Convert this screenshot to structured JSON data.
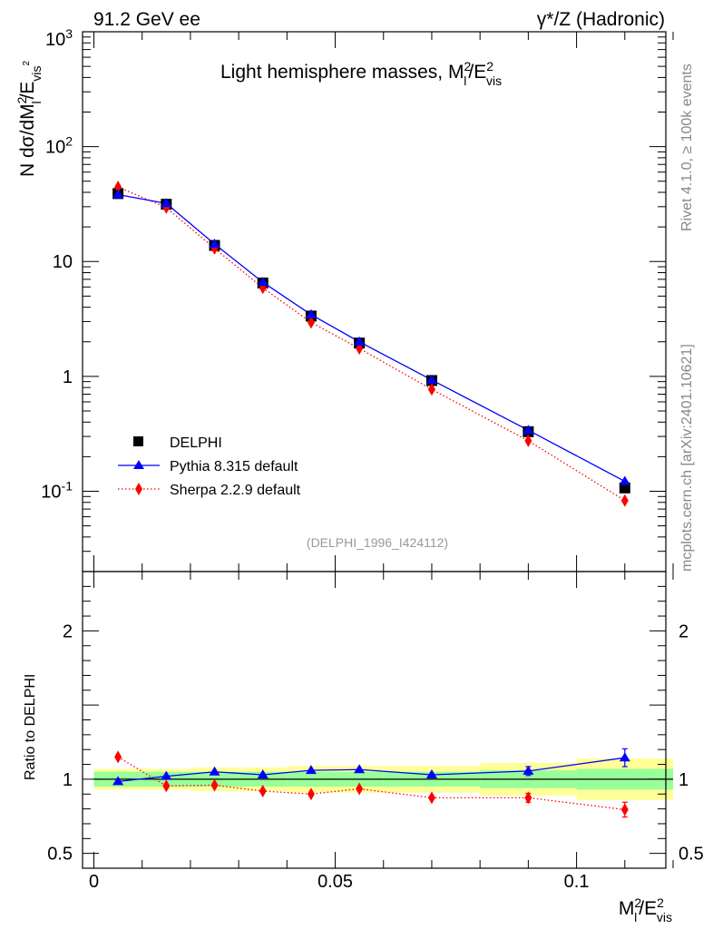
{
  "header": {
    "left": "91.2 GeV ee",
    "right": "γ*/Z (Hadronic)"
  },
  "side_labels": {
    "rivet": "Rivet 4.1.0, ≥ 100k events",
    "mcplots": "mcplots.cern.ch [arXiv:2401.10621]"
  },
  "chart_data": {
    "type": "line",
    "title": "Light hemisphere masses, M_l^2/E_vis^2",
    "analysis_id": "(DELPHI_1996_I424112)",
    "xlabel": "M_l^2/E_vis^2",
    "ylabel": "N  dσ/dM_l^2/E_vis^2",
    "ratio_ylabel": "Ratio to DELPHI",
    "xlim": [
      0,
      0.12
    ],
    "ylim": [
      0.02,
      1000
    ],
    "yscale": "log",
    "ratio_ylim": [
      0.4,
      2.4
    ],
    "x_ticks": [
      "0",
      "0.05",
      "0.1"
    ],
    "x_tick_values": [
      0,
      0.05,
      0.1
    ],
    "y_ticks": [
      "10^-1",
      "1",
      "10",
      "10^2",
      "10^3"
    ],
    "y_tick_values": [
      0.1,
      1,
      10,
      100,
      1000
    ],
    "ratio_ticks": [
      "0.5",
      "1",
      "2"
    ],
    "ratio_tick_values": [
      0.5,
      1,
      2
    ],
    "bins": [
      [
        0,
        0.01
      ],
      [
        0.01,
        0.02
      ],
      [
        0.02,
        0.03
      ],
      [
        0.03,
        0.04
      ],
      [
        0.04,
        0.05
      ],
      [
        0.05,
        0.06
      ],
      [
        0.06,
        0.08
      ],
      [
        0.08,
        0.1
      ],
      [
        0.1,
        0.12
      ]
    ],
    "x": [
      0.005,
      0.015,
      0.025,
      0.035,
      0.045,
      0.055,
      0.07,
      0.09,
      0.11
    ],
    "legend_position": "bottom-left",
    "series": [
      {
        "name": "DELPHI",
        "color": "#000000",
        "marker": "square",
        "values": [
          39.0,
          31.5,
          13.8,
          6.5,
          3.35,
          1.95,
          0.92,
          0.33,
          0.107
        ],
        "band_inner": [
          0.05,
          0.05,
          0.05,
          0.05,
          0.05,
          0.05,
          0.05,
          0.06,
          0.07
        ],
        "band_outer": [
          0.07,
          0.07,
          0.08,
          0.08,
          0.09,
          0.09,
          0.09,
          0.11,
          0.14
        ]
      },
      {
        "name": "Pythia 8.315 default",
        "color": "#0000ff",
        "marker": "triangle",
        "line": "solid",
        "values": [
          38.2,
          32.0,
          14.2,
          6.6,
          3.45,
          2.0,
          0.93,
          0.34,
          0.122
        ],
        "ratio": [
          0.985,
          1.02,
          1.05,
          1.03,
          1.06,
          1.065,
          1.03,
          1.055,
          1.145
        ],
        "ratio_err": [
          0,
          0,
          0,
          0,
          0,
          0,
          0,
          0.03,
          0.06
        ]
      },
      {
        "name": "Sherpa 2.2.9 default",
        "color": "#ff0000",
        "marker": "diamond",
        "line": "dotted",
        "values": [
          44.5,
          29.5,
          13.0,
          5.9,
          2.95,
          1.75,
          0.77,
          0.275,
          0.083
        ],
        "ratio": [
          1.15,
          0.955,
          0.96,
          0.92,
          0.9,
          0.935,
          0.875,
          0.875,
          0.795
        ],
        "ratio_err": [
          0,
          0,
          0,
          0,
          0,
          0,
          0,
          0.03,
          0.05
        ]
      }
    ]
  }
}
